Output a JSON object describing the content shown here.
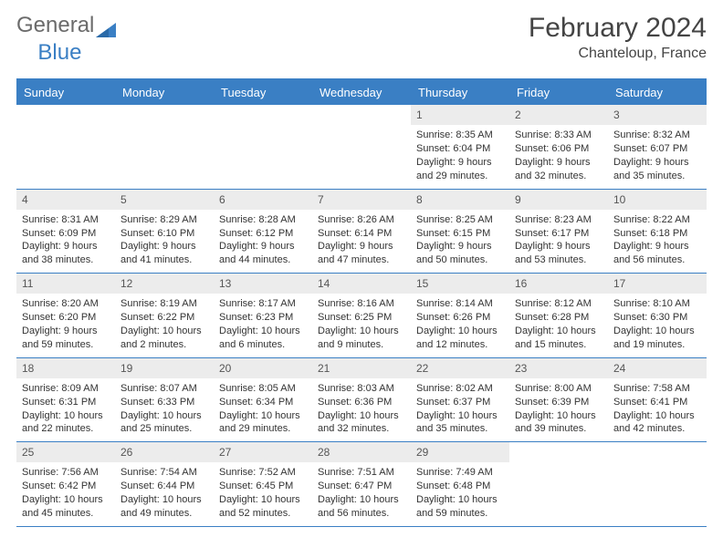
{
  "logo": {
    "text_general": "General",
    "text_blue": "Blue"
  },
  "title": "February 2024",
  "subtitle": "Chanteloup, France",
  "colors": {
    "header_bg": "#3a7fc4",
    "header_text": "#ffffff",
    "daynum_bg": "#ececec",
    "body_text": "#333333",
    "logo_gray": "#6b6b6b"
  },
  "day_headers": [
    "Sunday",
    "Monday",
    "Tuesday",
    "Wednesday",
    "Thursday",
    "Friday",
    "Saturday"
  ],
  "weeks": [
    [
      null,
      null,
      null,
      null,
      {
        "n": "1",
        "sr": "Sunrise: 8:35 AM",
        "ss": "Sunset: 6:04 PM",
        "dl": "Daylight: 9 hours and 29 minutes."
      },
      {
        "n": "2",
        "sr": "Sunrise: 8:33 AM",
        "ss": "Sunset: 6:06 PM",
        "dl": "Daylight: 9 hours and 32 minutes."
      },
      {
        "n": "3",
        "sr": "Sunrise: 8:32 AM",
        "ss": "Sunset: 6:07 PM",
        "dl": "Daylight: 9 hours and 35 minutes."
      }
    ],
    [
      {
        "n": "4",
        "sr": "Sunrise: 8:31 AM",
        "ss": "Sunset: 6:09 PM",
        "dl": "Daylight: 9 hours and 38 minutes."
      },
      {
        "n": "5",
        "sr": "Sunrise: 8:29 AM",
        "ss": "Sunset: 6:10 PM",
        "dl": "Daylight: 9 hours and 41 minutes."
      },
      {
        "n": "6",
        "sr": "Sunrise: 8:28 AM",
        "ss": "Sunset: 6:12 PM",
        "dl": "Daylight: 9 hours and 44 minutes."
      },
      {
        "n": "7",
        "sr": "Sunrise: 8:26 AM",
        "ss": "Sunset: 6:14 PM",
        "dl": "Daylight: 9 hours and 47 minutes."
      },
      {
        "n": "8",
        "sr": "Sunrise: 8:25 AM",
        "ss": "Sunset: 6:15 PM",
        "dl": "Daylight: 9 hours and 50 minutes."
      },
      {
        "n": "9",
        "sr": "Sunrise: 8:23 AM",
        "ss": "Sunset: 6:17 PM",
        "dl": "Daylight: 9 hours and 53 minutes."
      },
      {
        "n": "10",
        "sr": "Sunrise: 8:22 AM",
        "ss": "Sunset: 6:18 PM",
        "dl": "Daylight: 9 hours and 56 minutes."
      }
    ],
    [
      {
        "n": "11",
        "sr": "Sunrise: 8:20 AM",
        "ss": "Sunset: 6:20 PM",
        "dl": "Daylight: 9 hours and 59 minutes."
      },
      {
        "n": "12",
        "sr": "Sunrise: 8:19 AM",
        "ss": "Sunset: 6:22 PM",
        "dl": "Daylight: 10 hours and 2 minutes."
      },
      {
        "n": "13",
        "sr": "Sunrise: 8:17 AM",
        "ss": "Sunset: 6:23 PM",
        "dl": "Daylight: 10 hours and 6 minutes."
      },
      {
        "n": "14",
        "sr": "Sunrise: 8:16 AM",
        "ss": "Sunset: 6:25 PM",
        "dl": "Daylight: 10 hours and 9 minutes."
      },
      {
        "n": "15",
        "sr": "Sunrise: 8:14 AM",
        "ss": "Sunset: 6:26 PM",
        "dl": "Daylight: 10 hours and 12 minutes."
      },
      {
        "n": "16",
        "sr": "Sunrise: 8:12 AM",
        "ss": "Sunset: 6:28 PM",
        "dl": "Daylight: 10 hours and 15 minutes."
      },
      {
        "n": "17",
        "sr": "Sunrise: 8:10 AM",
        "ss": "Sunset: 6:30 PM",
        "dl": "Daylight: 10 hours and 19 minutes."
      }
    ],
    [
      {
        "n": "18",
        "sr": "Sunrise: 8:09 AM",
        "ss": "Sunset: 6:31 PM",
        "dl": "Daylight: 10 hours and 22 minutes."
      },
      {
        "n": "19",
        "sr": "Sunrise: 8:07 AM",
        "ss": "Sunset: 6:33 PM",
        "dl": "Daylight: 10 hours and 25 minutes."
      },
      {
        "n": "20",
        "sr": "Sunrise: 8:05 AM",
        "ss": "Sunset: 6:34 PM",
        "dl": "Daylight: 10 hours and 29 minutes."
      },
      {
        "n": "21",
        "sr": "Sunrise: 8:03 AM",
        "ss": "Sunset: 6:36 PM",
        "dl": "Daylight: 10 hours and 32 minutes."
      },
      {
        "n": "22",
        "sr": "Sunrise: 8:02 AM",
        "ss": "Sunset: 6:37 PM",
        "dl": "Daylight: 10 hours and 35 minutes."
      },
      {
        "n": "23",
        "sr": "Sunrise: 8:00 AM",
        "ss": "Sunset: 6:39 PM",
        "dl": "Daylight: 10 hours and 39 minutes."
      },
      {
        "n": "24",
        "sr": "Sunrise: 7:58 AM",
        "ss": "Sunset: 6:41 PM",
        "dl": "Daylight: 10 hours and 42 minutes."
      }
    ],
    [
      {
        "n": "25",
        "sr": "Sunrise: 7:56 AM",
        "ss": "Sunset: 6:42 PM",
        "dl": "Daylight: 10 hours and 45 minutes."
      },
      {
        "n": "26",
        "sr": "Sunrise: 7:54 AM",
        "ss": "Sunset: 6:44 PM",
        "dl": "Daylight: 10 hours and 49 minutes."
      },
      {
        "n": "27",
        "sr": "Sunrise: 7:52 AM",
        "ss": "Sunset: 6:45 PM",
        "dl": "Daylight: 10 hours and 52 minutes."
      },
      {
        "n": "28",
        "sr": "Sunrise: 7:51 AM",
        "ss": "Sunset: 6:47 PM",
        "dl": "Daylight: 10 hours and 56 minutes."
      },
      {
        "n": "29",
        "sr": "Sunrise: 7:49 AM",
        "ss": "Sunset: 6:48 PM",
        "dl": "Daylight: 10 hours and 59 minutes."
      },
      null,
      null
    ]
  ]
}
